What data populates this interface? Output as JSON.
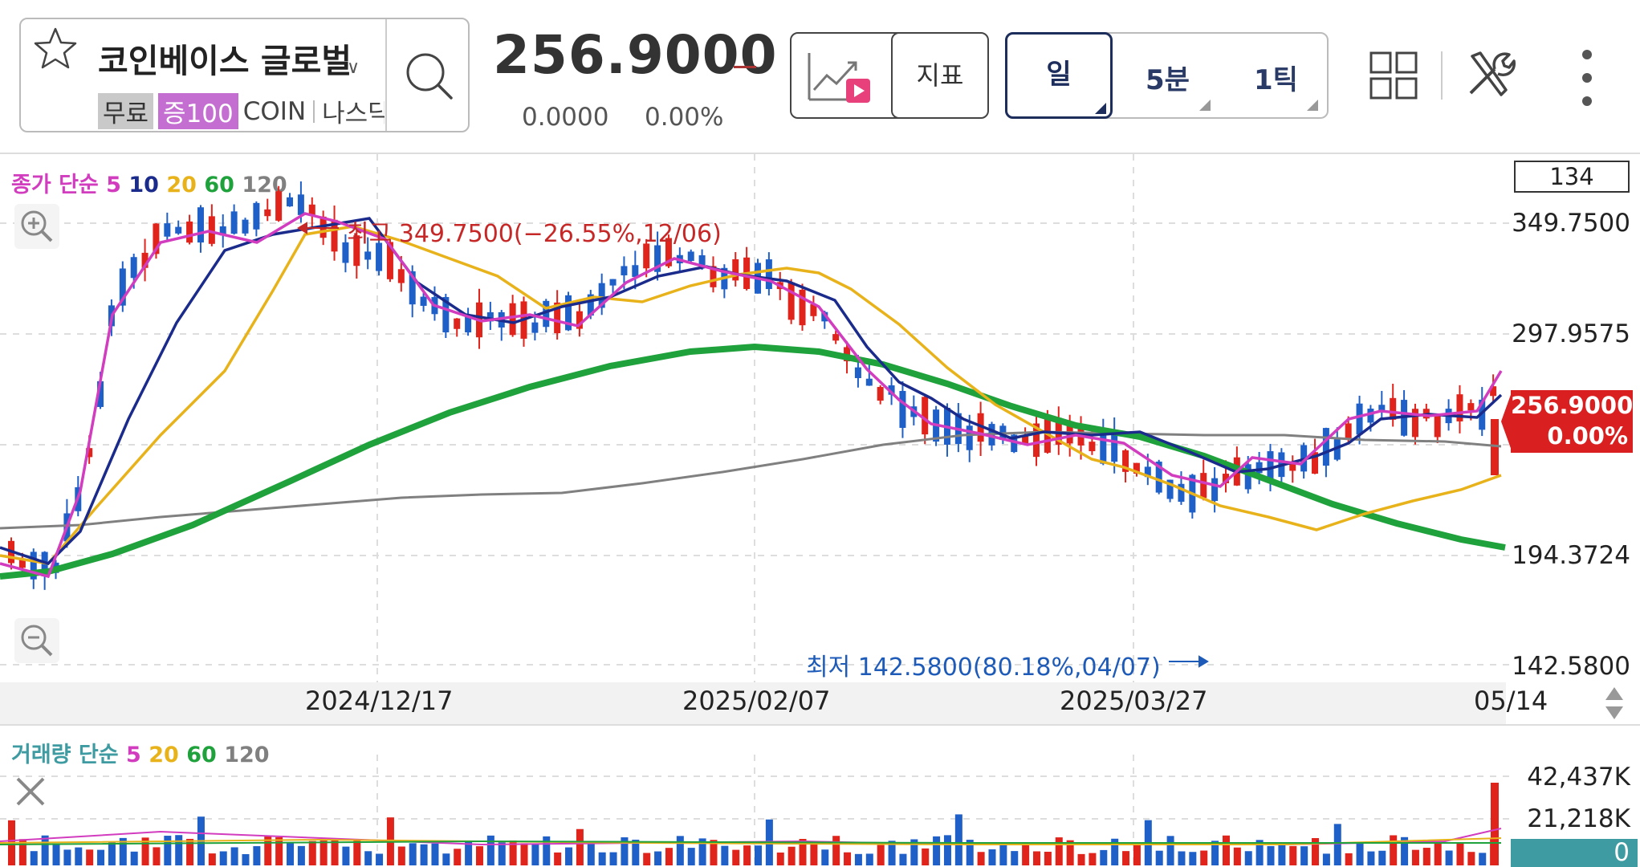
{
  "stock": {
    "name": "코인베이스 글로벌",
    "badge_free": "무료",
    "badge_margin": "증100",
    "ticker": "COIN",
    "exchange": "나스닥"
  },
  "quote": {
    "price": "256.9000",
    "change": "0.0000",
    "change_pct": "0.00%"
  },
  "toolbar": {
    "indicator_label": "지표",
    "periods": [
      "일",
      "5분",
      "1틱"
    ],
    "selected_period": "일"
  },
  "legend": {
    "price_ma_prefix": "종가 단순",
    "price_ma_periods": [
      "5",
      "10",
      "20",
      "60",
      "120"
    ],
    "volume_ma_prefix": "거래량 단순",
    "volume_ma_periods": [
      "5",
      "20",
      "60",
      "120"
    ]
  },
  "axis": {
    "visible_count": "134",
    "price_ticks": [
      "349.7500",
      "297.9575",
      "194.3724",
      "142.5800"
    ],
    "current_tag_price": "256.9000",
    "current_tag_pct": "0.00%",
    "volume_ticks": [
      "42,437K",
      "21,218K"
    ],
    "volume_current": "0",
    "dates": [
      "2024/12/17",
      "2025/02/07",
      "2025/03/27",
      "05/14"
    ]
  },
  "annotations": {
    "high": "최고 349.7500(−26.55%,12/06)",
    "low": "최저 142.5800(80.18%,04/07)"
  },
  "colors": {
    "up": "#e0231b",
    "down": "#1f5fc8",
    "ma5": "#d23cbf",
    "ma10": "#1a2b8c",
    "ma20": "#e8b21a",
    "ma60": "#1fa13c",
    "ma120": "#808080"
  }
}
